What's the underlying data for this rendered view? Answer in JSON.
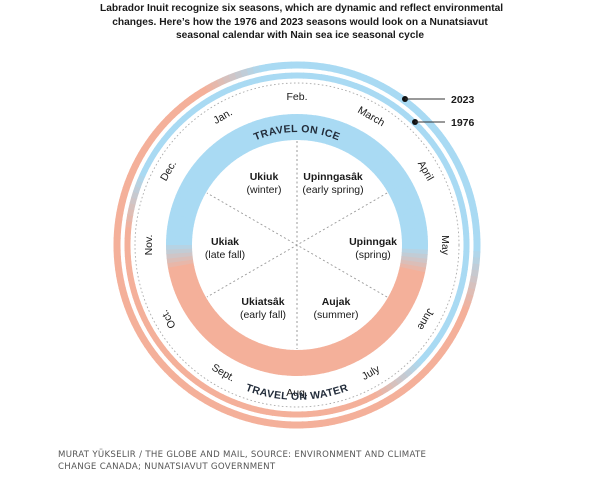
{
  "title": {
    "lines": [
      "Labrador Inuit recognize six seasons, which are dynamic and reflect environmental",
      "changes. Here’s how the 1976 and 2023 seasons would look on a Nunatsiavut",
      "seasonal calendar with Nain sea ice seasonal cycle"
    ]
  },
  "colors": {
    "ice": "#a9daf3",
    "water": "#f4b09a",
    "transition": "#c9c6cc",
    "text": "#1a1a1a",
    "travel_text": "#222c3a",
    "divider": "#999999"
  },
  "months": [
    "Jan.",
    "Feb.",
    "March",
    "April",
    "May",
    "June",
    "July",
    "Aug.",
    "Sept.",
    "Oct.",
    "Nov.",
    "Dec."
  ],
  "seasons": [
    {
      "name": "Ukiuk",
      "desc": "(winter)"
    },
    {
      "name": "Upinngasâk",
      "desc": "(early spring)"
    },
    {
      "name": "Upinngak",
      "desc": "(spring)"
    },
    {
      "name": "Aujak",
      "desc": "(summer)"
    },
    {
      "name": "Ukiatsâk",
      "desc": "(early fall)"
    },
    {
      "name": "Ukiak",
      "desc": "(late fall)"
    }
  ],
  "travel": {
    "ice": "TRAVEL ON ICE",
    "water": "TRAVEL ON WATER"
  },
  "legend": {
    "outer": "2023",
    "inner": "1976"
  },
  "ice_periods": {
    "2023": {
      "start_month": "Feb.",
      "end_month": "May"
    },
    "1976": {
      "start_month": "Nov.",
      "end_month": "June"
    }
  },
  "credit": {
    "lines": [
      "MURAT YÜKSELIR / THE GLOBE AND MAIL, SOURCE: ENVIRONMENT AND CLIMATE",
      "CHANGE CANADA; NUNATSIAVUT GOVERNMENT"
    ]
  }
}
